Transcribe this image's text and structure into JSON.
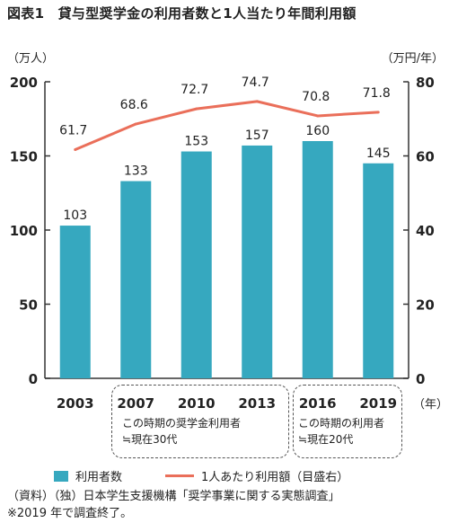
{
  "title": "図表1　貸与型奨学金の利用者数と1人当たり年間利用額",
  "unit_left": "（万人）",
  "unit_right": "（万円/年）",
  "x_unit": "（年）",
  "colors": {
    "bars": "#36a8bf",
    "line": "#ea6f5a",
    "axis": "#333333"
  },
  "groups": [
    {
      "note_line1": "この時期の奨学金利用者",
      "note_line2": "≒現在30代"
    },
    {
      "note_line1": "この時期の利用者",
      "note_line2": "≒現在20代"
    }
  ],
  "legend": {
    "bars": "利用者数",
    "line": "1人あたり利用額（目盛右）"
  },
  "source_line1": "（資料）（独）日本学生支援機構「奨学事業に関する実態調査」",
  "source_line2": "※2019 年で調査終了。",
  "chart_data": {
    "type": "bar",
    "categories": [
      "2003",
      "2007",
      "2010",
      "2013",
      "2016",
      "2019"
    ],
    "series": [
      {
        "name": "利用者数",
        "type": "bar",
        "axis": "left",
        "values": [
          103,
          133,
          153,
          157,
          160,
          145
        ]
      },
      {
        "name": "1人あたり利用額（目盛右）",
        "type": "line",
        "axis": "right",
        "values": [
          61.7,
          68.6,
          72.7,
          74.7,
          70.8,
          71.8
        ]
      }
    ],
    "y_left": {
      "ylim": [
        0,
        200
      ],
      "ticks": [
        0,
        50,
        100,
        150,
        200
      ]
    },
    "y_right": {
      "ylim": [
        0,
        80
      ],
      "ticks": [
        0,
        20,
        40,
        60,
        80
      ]
    },
    "grid": false
  }
}
